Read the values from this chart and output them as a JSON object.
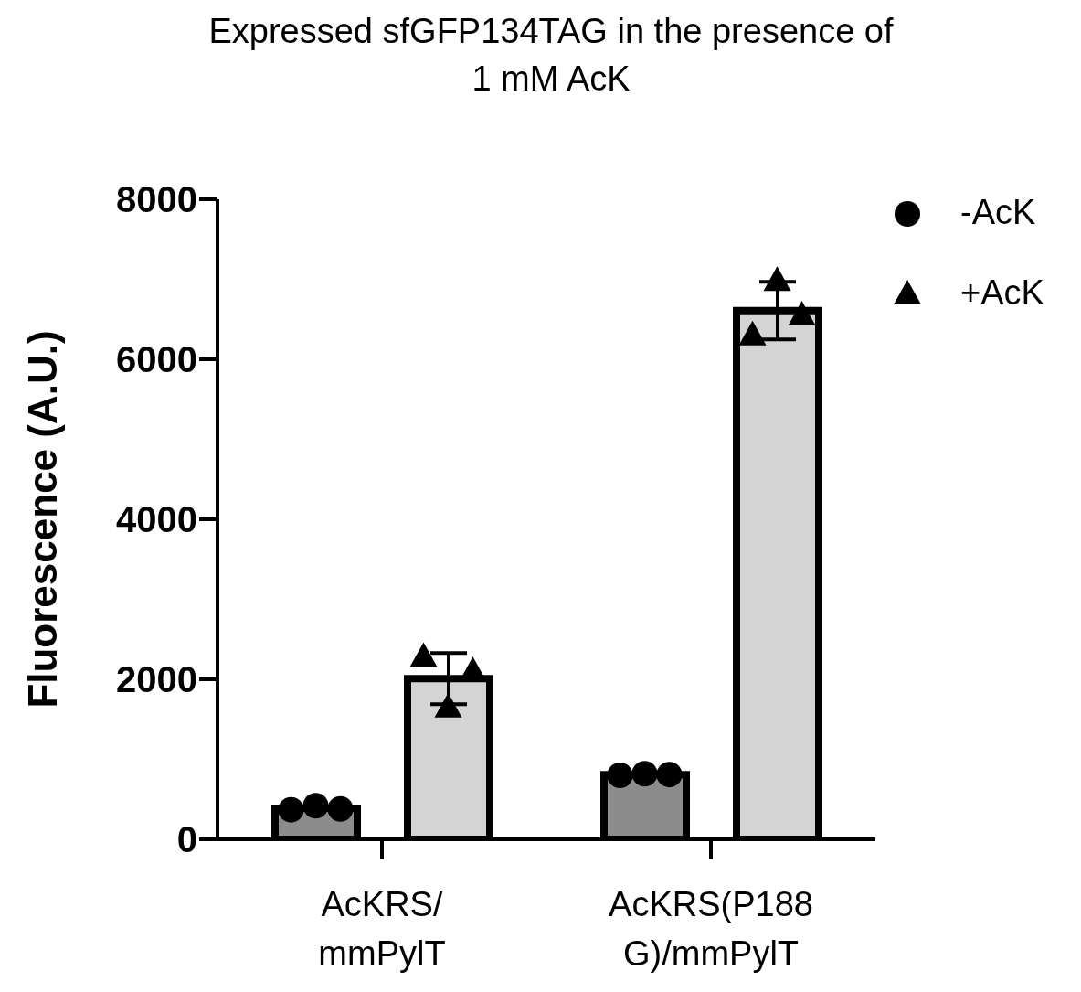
{
  "chart_data": {
    "type": "bar",
    "title": "Expressed sfGFP134TAG in the presence of 1 mM AcK",
    "ylabel": "Fluorescence (A.U.)",
    "categories": [
      "AcKRS/mmPylT",
      "AcKRS(P188G)/mmPylT"
    ],
    "series": [
      {
        "type": "bar",
        "color": "#8c8c8c",
        "values": [
          390,
          810
        ],
        "errors": [
          25,
          15
        ]
      },
      {
        "color": "#d4d4d4",
        "values": [
          2010,
          6610
        ],
        "errors": [
          320,
          360
        ]
      },
      {
        "type": "scatter",
        "name": "-AcK",
        "color": "#000000",
        "marker": "circle",
        "x": [
          "AcKRS/mmPylT",
          "AcKRS/mmPylT",
          "AcKRS/mmPylT",
          "AcKRS(P188G)/mmPylT",
          "AcKRS(P188G)/mmPylT",
          "AcKRS(P188G)/mmPylT"
        ],
        "values": [
          370,
          420,
          380,
          800,
          820,
          810
        ]
      },
      {
        "type": "scatter",
        "name": "+AcK",
        "color": "#000000",
        "marker": "triangle",
        "x": [
          "AcKRS/mmPylT",
          "AcKRS/mmPylT",
          "AcKRS/mmPylT",
          "AcKRS(P188G)/mmPylT",
          "AcKRS(P188G)/mmPylT",
          "AcKRS(P188G)/mmPylT"
        ],
        "values": [
          2280,
          1650,
          2100,
          6300,
          6980,
          6550
        ]
      }
    ],
    "ylim": [
      0,
      8000
    ],
    "yticks": [
      0,
      2000,
      4000,
      6000,
      8000
    ],
    "grid": false,
    "legend": "top right"
  }
}
